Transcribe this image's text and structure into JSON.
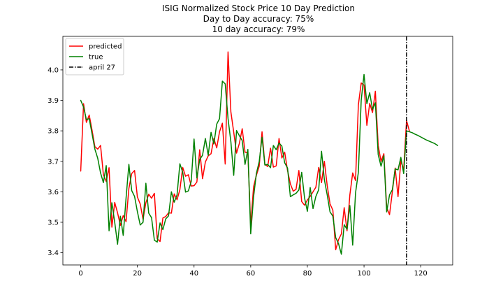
{
  "chart_data": {
    "type": "line",
    "title_lines": [
      "ISIG Normalized Stock Price 10 Day Prediction",
      "Day to Day accuracy: 75%",
      "10 day accuracy: 79%"
    ],
    "xlabel": "",
    "ylabel": "",
    "xlim": [
      -6.3,
      131.3
    ],
    "ylim": [
      3.36,
      4.11
    ],
    "x_ticks": [
      0,
      20,
      40,
      60,
      80,
      100,
      120
    ],
    "y_ticks": [
      3.4,
      3.5,
      3.6,
      3.7,
      3.8,
      3.9,
      4.0
    ],
    "y_tick_labels": [
      "3.4",
      "3.5",
      "3.6",
      "3.7",
      "3.8",
      "3.9",
      "4.0"
    ],
    "grid": false,
    "legend_position": "top-left",
    "series": [
      {
        "name": "predicted",
        "color": "#ff0000",
        "x_start": 0,
        "values": [
          3.668,
          3.889,
          3.828,
          3.852,
          3.802,
          3.748,
          3.74,
          3.752,
          3.656,
          3.634,
          3.679,
          3.484,
          3.565,
          3.531,
          3.49,
          3.522,
          3.502,
          3.611,
          3.66,
          3.67,
          3.583,
          3.56,
          3.51,
          3.564,
          3.592,
          3.579,
          3.595,
          3.446,
          3.437,
          3.514,
          3.519,
          3.531,
          3.53,
          3.593,
          3.574,
          3.607,
          3.68,
          3.651,
          3.656,
          3.619,
          3.62,
          3.632,
          3.738,
          3.643,
          3.698,
          3.718,
          3.725,
          3.775,
          3.744,
          3.797,
          3.825,
          3.691,
          4.059,
          3.862,
          3.796,
          3.727,
          3.759,
          3.807,
          3.73,
          3.727,
          3.488,
          3.616,
          3.654,
          3.684,
          3.797,
          3.69,
          3.683,
          3.743,
          3.681,
          3.685,
          3.775,
          3.711,
          3.73,
          3.67,
          3.626,
          3.602,
          3.608,
          3.67,
          3.568,
          3.556,
          3.573,
          3.585,
          3.6,
          3.615,
          3.68,
          3.63,
          3.7,
          3.621,
          3.56,
          3.54,
          3.41,
          3.443,
          3.462,
          3.548,
          3.472,
          3.59,
          3.662,
          3.637,
          3.885,
          3.957,
          3.95,
          3.818,
          3.89,
          3.86,
          3.93,
          3.752,
          3.7,
          3.725,
          3.548,
          3.525,
          3.6,
          3.678,
          3.584,
          3.702,
          3.672,
          3.834,
          3.8
        ]
      },
      {
        "name": "true",
        "color": "#008000",
        "x_start": 0,
        "values": [
          3.9,
          3.878,
          3.837,
          3.84,
          3.79,
          3.74,
          3.71,
          3.662,
          3.63,
          3.686,
          3.472,
          3.564,
          3.5,
          3.428,
          3.52,
          3.457,
          3.579,
          3.69,
          3.604,
          3.585,
          3.535,
          3.491,
          3.5,
          3.628,
          3.53,
          3.515,
          3.441,
          3.435,
          3.498,
          3.476,
          3.511,
          3.521,
          3.6,
          3.566,
          3.59,
          3.692,
          3.664,
          3.599,
          3.603,
          3.634,
          3.773,
          3.645,
          3.706,
          3.72,
          3.775,
          3.72,
          3.795,
          3.757,
          3.822,
          3.84,
          3.963,
          3.954,
          3.84,
          3.764,
          3.654,
          3.801,
          3.784,
          3.768,
          3.69,
          3.739,
          3.462,
          3.582,
          3.66,
          3.699,
          3.779,
          3.688,
          3.69,
          3.679,
          3.752,
          3.738,
          3.76,
          3.75,
          3.695,
          3.678,
          3.584,
          3.59,
          3.595,
          3.606,
          3.664,
          3.58,
          3.536,
          3.614,
          3.545,
          3.585,
          3.607,
          3.733,
          3.64,
          3.59,
          3.534,
          3.52,
          3.45,
          3.43,
          3.395,
          3.492,
          3.477,
          3.555,
          3.425,
          3.596,
          3.664,
          3.9,
          3.985,
          3.889,
          3.925,
          3.87,
          3.892,
          3.722,
          3.684,
          3.718,
          3.534,
          3.59,
          3.607,
          3.675,
          3.672,
          3.713,
          3.66,
          3.8,
          3.797,
          3.794,
          3.789,
          3.785,
          3.78,
          3.775,
          3.77,
          3.766,
          3.762,
          3.758,
          3.752
        ]
      }
    ],
    "vlines": [
      {
        "name": "april 27",
        "x": 115,
        "color": "#000000",
        "style": "dashdot"
      }
    ]
  }
}
